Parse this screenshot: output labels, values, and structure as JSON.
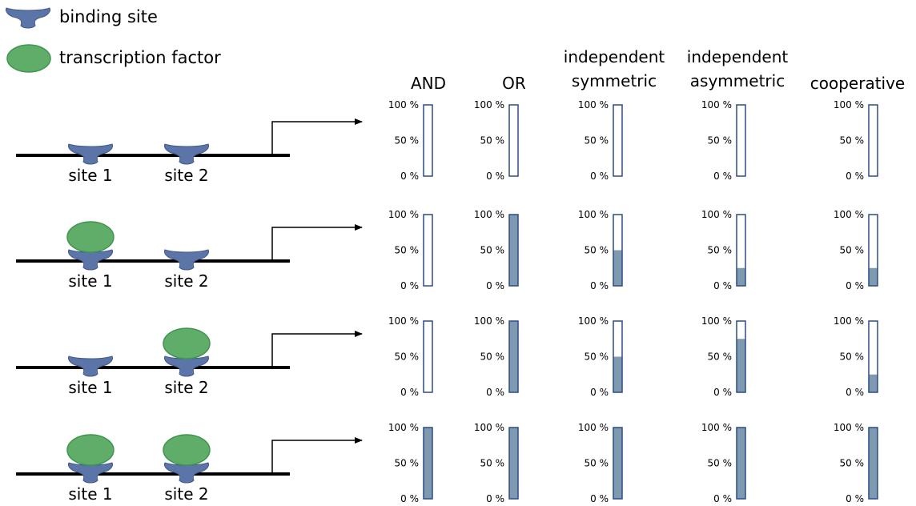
{
  "legend": {
    "binding_site_label": "binding site",
    "transcription_factor_label": "transcription factor"
  },
  "columns": [
    {
      "title_lines": [
        "AND"
      ]
    },
    {
      "title_lines": [
        "OR"
      ]
    },
    {
      "title_lines": [
        "independent",
        "symmetric"
      ]
    },
    {
      "title_lines": [
        "independent",
        "asymmetric"
      ]
    },
    {
      "title_lines": [
        "cooperative"
      ]
    }
  ],
  "tick_labels": [
    "100 %",
    "50 %",
    "0 %"
  ],
  "site_labels": [
    "site 1",
    "site 2"
  ],
  "rows": [
    {
      "tf_site1": false,
      "tf_site2": false,
      "expression": [
        0,
        0,
        0,
        0,
        0
      ]
    },
    {
      "tf_site1": true,
      "tf_site2": false,
      "expression": [
        0,
        1,
        0.5,
        0.25,
        0.25
      ]
    },
    {
      "tf_site1": false,
      "tf_site2": true,
      "expression": [
        0,
        1,
        0.5,
        0.75,
        0.25
      ]
    },
    {
      "tf_site1": true,
      "tf_site2": true,
      "expression": [
        1,
        1,
        1,
        1,
        1
      ]
    }
  ],
  "colors": {
    "binding_site": "#5b75a8",
    "binding_site_stroke": "#44598a",
    "transcription_factor": "#5fad68",
    "transcription_factor_stroke": "#3f9550",
    "bar_fill": "#7f99b0",
    "bar_stroke": "#2c4c85",
    "dna": "#000000"
  }
}
